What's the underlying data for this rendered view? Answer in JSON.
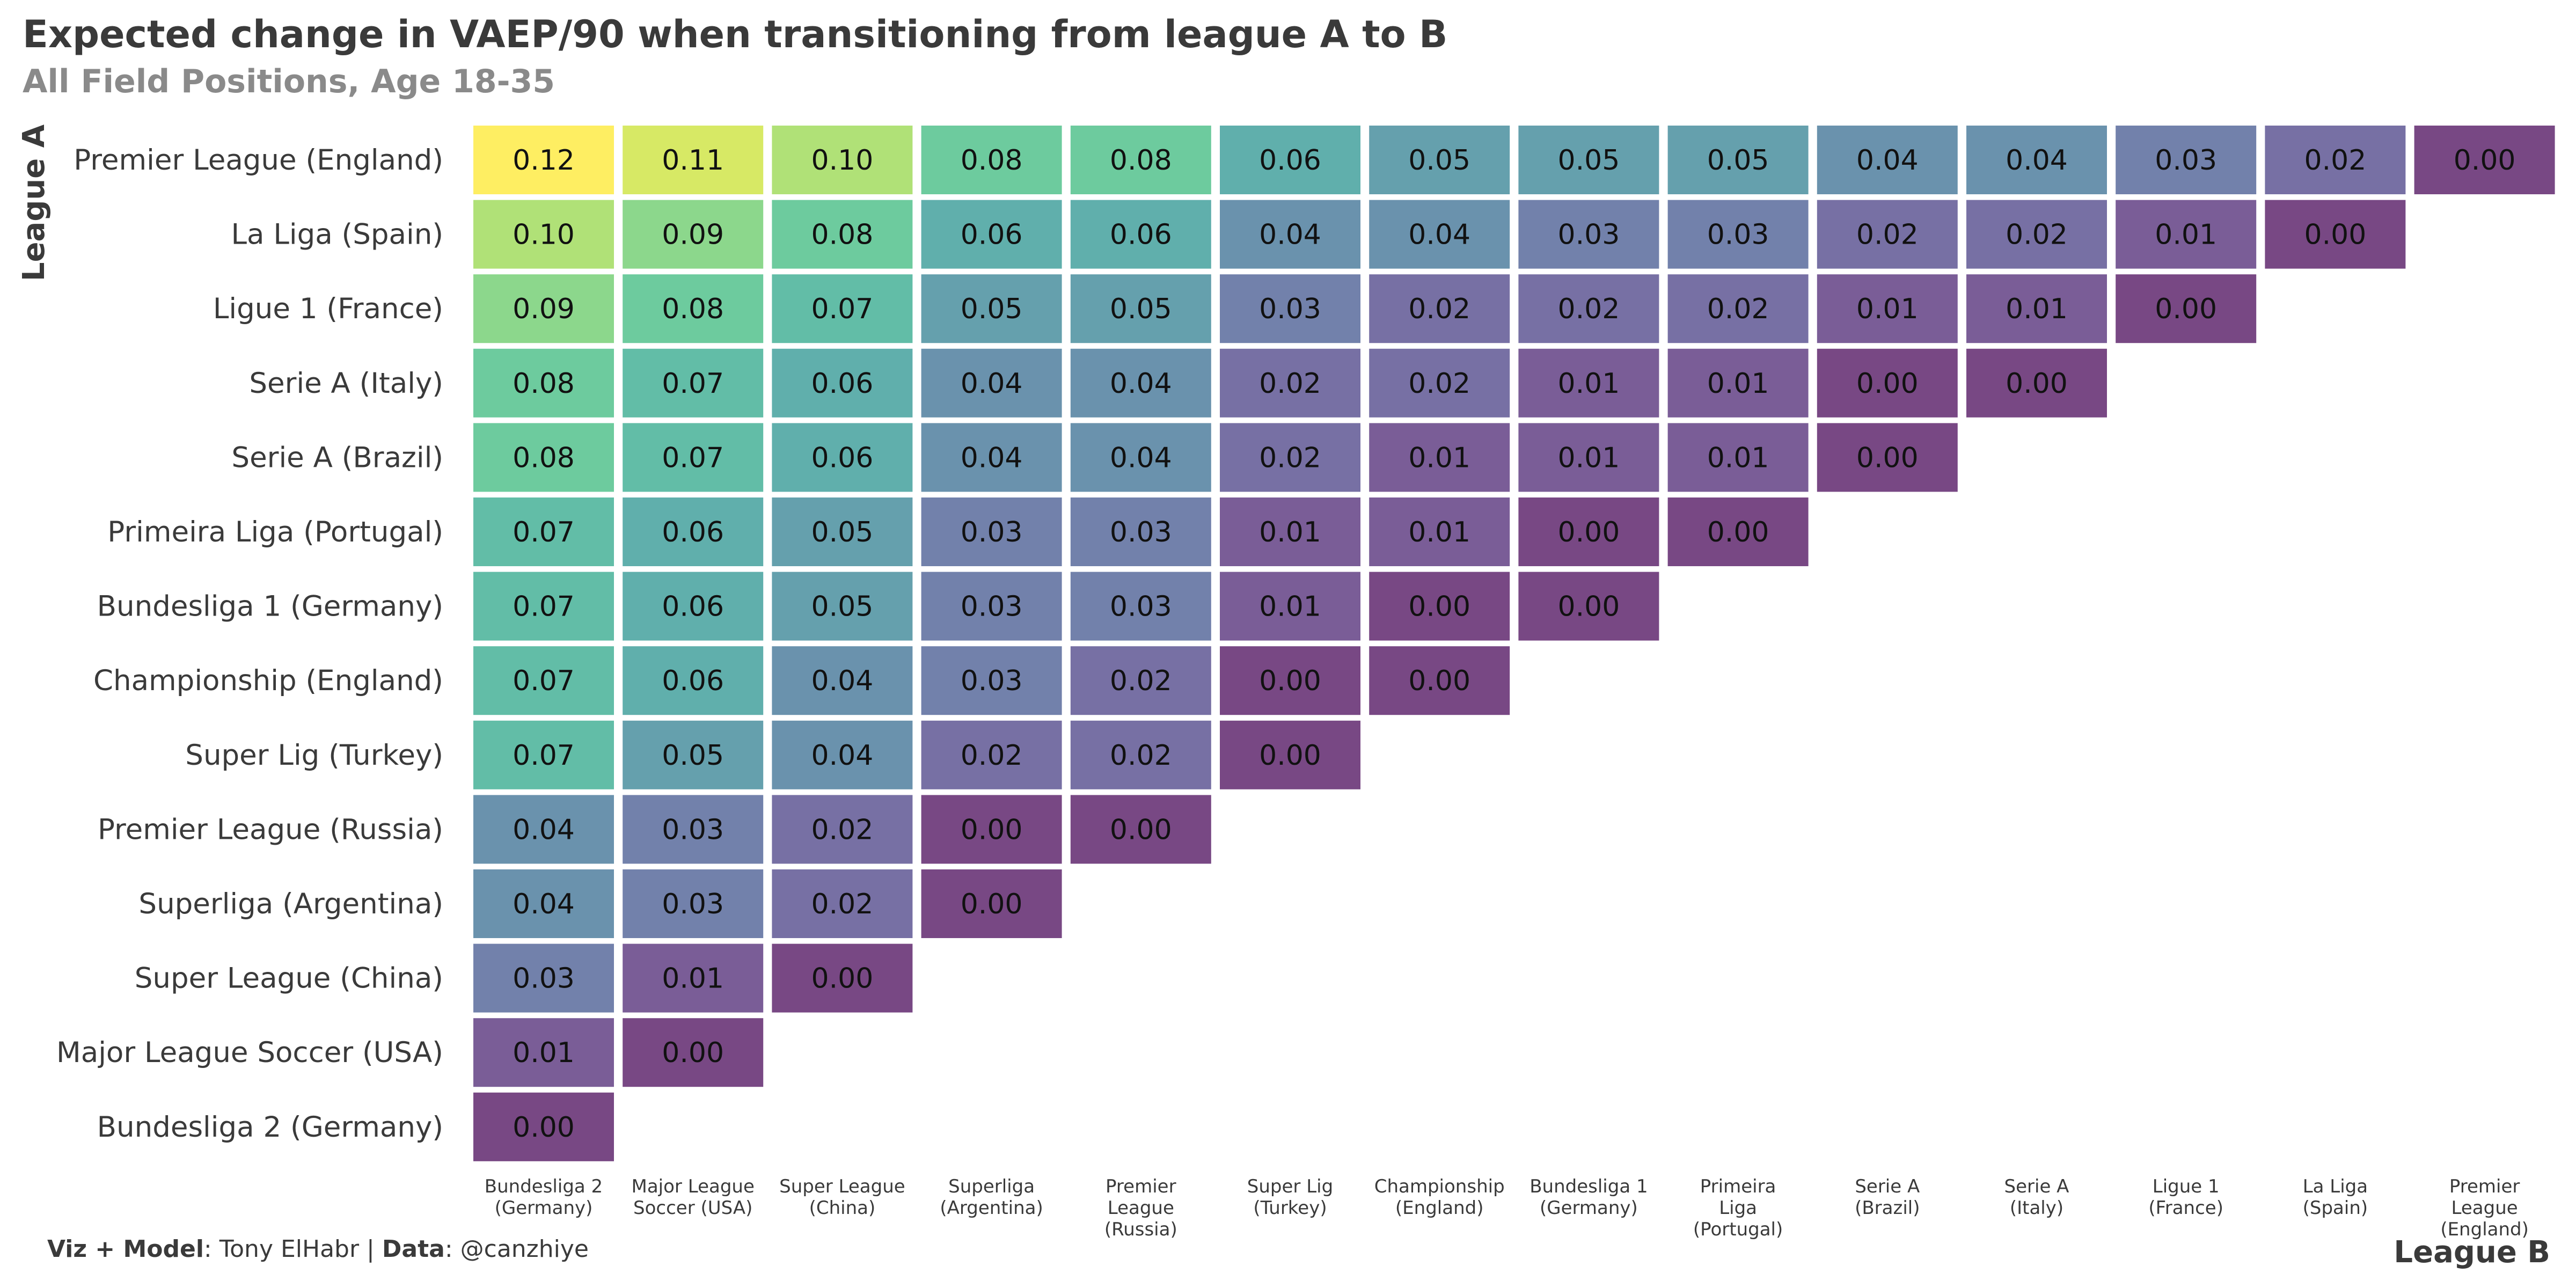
{
  "title": "Expected change in VAEP/90 when transitioning from league A to B",
  "subtitle": "All Field Positions, Age 18-35",
  "caption": {
    "viz_label": "Viz + Model",
    "viz_value": ": Tony ElHabr | ",
    "data_label": "Data",
    "data_value": ": @canzhiye"
  },
  "chart_data": {
    "type": "heatmap",
    "ylabel": "League A",
    "xlabel": "League B",
    "y_categories": [
      "Premier League (England)",
      "La Liga (Spain)",
      "Ligue 1 (France)",
      "Serie A (Italy)",
      "Serie A (Brazil)",
      "Primeira Liga (Portugal)",
      "Bundesliga 1 (Germany)",
      "Championship (England)",
      "Super Lig (Turkey)",
      "Premier League (Russia)",
      "Superliga (Argentina)",
      "Super League (China)",
      "Major League Soccer (USA)",
      "Bundesliga 2 (Germany)"
    ],
    "x_categories": [
      [
        "Bundesliga 2",
        "(Germany)"
      ],
      [
        "Major League",
        "Soccer (USA)"
      ],
      [
        "Super League",
        "(China)"
      ],
      [
        "Superliga",
        "(Argentina)"
      ],
      [
        "Premier",
        "League",
        "(Russia)"
      ],
      [
        "Super Lig",
        "(Turkey)"
      ],
      [
        "Championship",
        "(England)"
      ],
      [
        "Bundesliga 1",
        "(Germany)"
      ],
      [
        "Primeira",
        "Liga",
        "(Portugal)"
      ],
      [
        "Serie A",
        "(Brazil)"
      ],
      [
        "Serie A",
        "(Italy)"
      ],
      [
        "Ligue 1",
        "(France)"
      ],
      [
        "La Liga",
        "(Spain)"
      ],
      [
        "Premier",
        "League",
        "(England)"
      ]
    ],
    "values": [
      [
        0.12,
        0.11,
        0.1,
        0.08,
        0.08,
        0.06,
        0.05,
        0.05,
        0.05,
        0.04,
        0.04,
        0.03,
        0.02,
        0.0
      ],
      [
        0.1,
        0.09,
        0.08,
        0.06,
        0.06,
        0.04,
        0.04,
        0.03,
        0.03,
        0.02,
        0.02,
        0.01,
        0.0
      ],
      [
        0.09,
        0.08,
        0.07,
        0.05,
        0.05,
        0.03,
        0.02,
        0.02,
        0.02,
        0.01,
        0.01,
        0.0
      ],
      [
        0.08,
        0.07,
        0.06,
        0.04,
        0.04,
        0.02,
        0.02,
        0.01,
        0.01,
        0.0,
        0.0
      ],
      [
        0.08,
        0.07,
        0.06,
        0.04,
        0.04,
        0.02,
        0.01,
        0.01,
        0.01,
        0.0
      ],
      [
        0.07,
        0.06,
        0.05,
        0.03,
        0.03,
        0.01,
        0.01,
        0.0,
        0.0
      ],
      [
        0.07,
        0.06,
        0.05,
        0.03,
        0.03,
        0.01,
        0.0,
        0.0
      ],
      [
        0.07,
        0.06,
        0.04,
        0.03,
        0.02,
        0.0,
        0.0
      ],
      [
        0.07,
        0.05,
        0.04,
        0.02,
        0.02,
        0.0
      ],
      [
        0.04,
        0.03,
        0.02,
        0.0,
        0.0
      ],
      [
        0.04,
        0.03,
        0.02,
        0.0
      ],
      [
        0.03,
        0.01,
        0.0
      ],
      [
        0.01,
        0.0
      ],
      [
        0.0
      ]
    ],
    "color_scale": "viridis",
    "value_range": [
      0,
      0.12
    ]
  }
}
